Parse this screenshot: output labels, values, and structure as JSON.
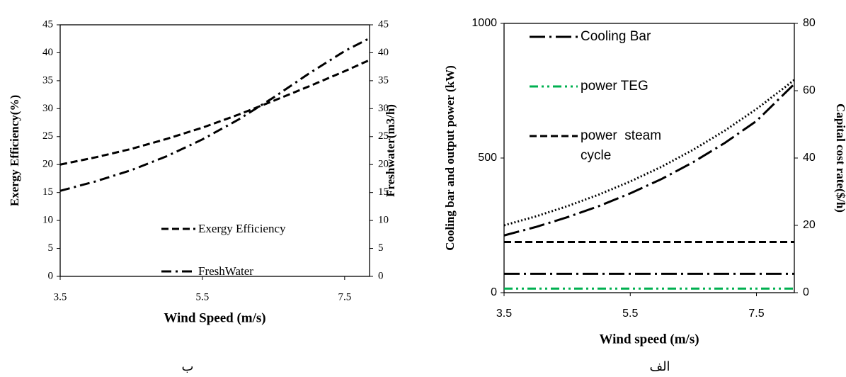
{
  "chart_data": [
    {
      "type": "line",
      "caption": "ب",
      "xlabel": "Wind  Speed (m/s)",
      "ylabel": "Exergy Efficiency(%)",
      "y2label": "Freshwater(m3/h)",
      "x": [
        3.5,
        4,
        4.5,
        5,
        5.5,
        6,
        6.5,
        7,
        7.5,
        7.85
      ],
      "xlim": [
        3.5,
        7.85
      ],
      "xticks": [
        3.5,
        5.5,
        7.5
      ],
      "ylim": [
        0,
        45
      ],
      "yticks": [
        0,
        5,
        10,
        15,
        20,
        25,
        30,
        35,
        40,
        45
      ],
      "y2lim": [
        0,
        45
      ],
      "y2ticks": [
        0,
        5,
        10,
        15,
        20,
        25,
        30,
        35,
        40,
        45
      ],
      "series": [
        {
          "name": "Exergy Efficiency",
          "color": "#000000",
          "line_style": "dashed",
          "values": [
            20,
            21.3,
            22.8,
            24.6,
            26.6,
            28.9,
            31.4,
            34,
            36.7,
            38.7
          ]
        },
        {
          "name": "FreshWater",
          "color": "#000000",
          "line_style": "dash-dot",
          "axis": "y2",
          "values": [
            15.3,
            17,
            19,
            21.5,
            24.5,
            28,
            32,
            36.3,
            40.3,
            42.6
          ]
        }
      ]
    },
    {
      "type": "line",
      "caption": "الف",
      "xlabel": "Wind speed (m/s)",
      "ylabel": "Cooling bar and output  power (kW)",
      "y2label": "Capital cost rate($/h)",
      "x": [
        3.5,
        4,
        4.5,
        5,
        5.5,
        6,
        6.5,
        7,
        7.5,
        8.1
      ],
      "xlim": [
        3.5,
        8.1
      ],
      "xticks": [
        3.5,
        5.5,
        7.5
      ],
      "ylim": [
        0,
        1000
      ],
      "yticks": [
        0,
        500,
        1000
      ],
      "y2lim": [
        0,
        80
      ],
      "y2ticks": [
        0,
        20,
        40,
        60,
        80
      ],
      "series": [
        {
          "name": "Cooling Bar",
          "color": "#000000",
          "line_style": "long-dash-dot",
          "values": [
            70,
            70,
            70,
            70,
            70,
            70,
            70,
            70,
            70,
            70
          ]
        },
        {
          "name": "power TEG",
          "color": "#00b050",
          "line_style": "dash-dot-dot",
          "values": [
            15,
            15,
            15,
            15,
            15,
            15,
            15,
            15,
            15,
            15
          ]
        },
        {
          "name": "power  steam cycle",
          "color": "#000000",
          "line_style": "dashed",
          "values": [
            188,
            188,
            188,
            188,
            188,
            188,
            188,
            188,
            188,
            188
          ]
        },
        {
          "color": "#000000",
          "line_style": "dotted",
          "values": [
            250,
            283,
            321,
            364,
            413,
            468,
            531,
            602,
            682,
            790
          ]
        },
        {
          "color": "#000000",
          "line_style": "long-dash-dot",
          "axis": "y2",
          "values": [
            17,
            19.5,
            22.4,
            25.7,
            29.5,
            33.8,
            38.8,
            44.5,
            51,
            62
          ]
        }
      ]
    }
  ]
}
